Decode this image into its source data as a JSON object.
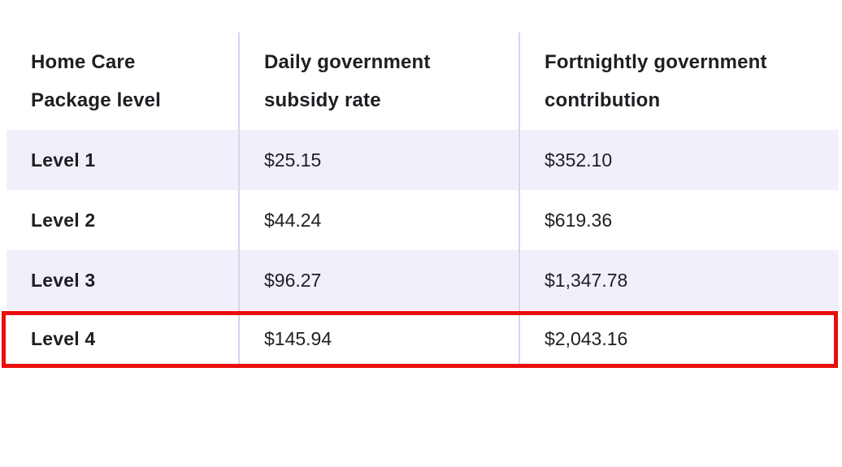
{
  "table": {
    "columns": [
      {
        "label": "Home Care Package level"
      },
      {
        "label": "Daily government subsidy rate"
      },
      {
        "label": "Fortnightly government contribution"
      }
    ],
    "rows": [
      {
        "level": "Level 1",
        "daily_rate": "$25.15",
        "fortnightly": "$352.10",
        "highlighted": false
      },
      {
        "level": "Level 2",
        "daily_rate": "$44.24",
        "fortnightly": "$619.36",
        "highlighted": false
      },
      {
        "level": "Level 3",
        "daily_rate": "$96.27",
        "fortnightly": "$1,347.78",
        "highlighted": false
      },
      {
        "level": "Level 4",
        "daily_rate": "$145.94",
        "fortnightly": "$2,043.16",
        "highlighted": true
      }
    ],
    "highlighted_row": "Level 4"
  },
  "colors": {
    "row_stripe": "#f1f0fa",
    "divider": "#d8d4ee",
    "highlight_border": "#ea0e0c",
    "text": "#1e1e23",
    "page_bg": "#ffffff"
  },
  "chart_data": {
    "type": "table",
    "title": "",
    "columns": [
      "Home Care Package level",
      "Daily government subsidy rate",
      "Fortnightly government contribution"
    ],
    "rows": [
      [
        "Level 1",
        "$25.15",
        "$352.10"
      ],
      [
        "Level 2",
        "$44.24",
        "$619.36"
      ],
      [
        "Level 3",
        "$96.27",
        "$1,347.78"
      ],
      [
        "Level 4",
        "$145.94",
        "$2,043.16"
      ]
    ],
    "annotation": "red box highlighting Level 4 row"
  }
}
